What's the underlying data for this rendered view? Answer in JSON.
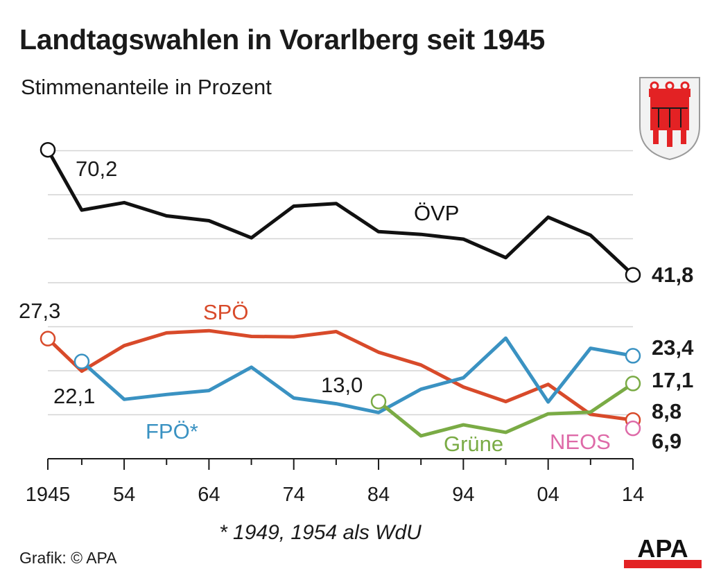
{
  "title": "Landtagswahlen in Vorarlberg seit 1945",
  "subtitle": "Stimmenanteile in Prozent",
  "footnote": "* 1949, 1954 als WdU",
  "credit": "Grafik: © APA",
  "logo_text": "APA",
  "chart_data": {
    "type": "line",
    "title": "Landtagswahlen in Vorarlberg seit 1945",
    "subtitle": "Stimmenanteile in Prozent",
    "x_tick_labels": [
      "1945",
      "54",
      "64",
      "74",
      "84",
      "94",
      "04",
      "14"
    ],
    "x_ticks": [
      1945,
      1954,
      1964,
      1974,
      1984,
      1994,
      2004,
      2014
    ],
    "xlim": [
      1945,
      2014
    ],
    "ylim": [
      0,
      70
    ],
    "grid": true,
    "series": [
      {
        "name": "ÖVP",
        "color": "#111111",
        "x": [
          1945,
          1949,
          1954,
          1959,
          1964,
          1969,
          1974,
          1979,
          1984,
          1989,
          1994,
          1999,
          2004,
          2009,
          2014
        ],
        "values": [
          70.2,
          56.5,
          58.2,
          55.2,
          54.1,
          50.2,
          57.4,
          58.0,
          51.6,
          51.0,
          49.9,
          45.7,
          54.9,
          50.8,
          41.8
        ]
      },
      {
        "name": "SPÖ",
        "color": "#d84a2a",
        "x": [
          1945,
          1949,
          1954,
          1959,
          1964,
          1969,
          1974,
          1979,
          1984,
          1989,
          1994,
          1999,
          2004,
          2009,
          2014
        ],
        "values": [
          27.3,
          19.9,
          25.7,
          28.6,
          29.1,
          27.8,
          27.7,
          28.9,
          24.2,
          21.3,
          16.3,
          13.0,
          16.9,
          10.1,
          8.8
        ]
      },
      {
        "name": "FPÖ*",
        "color": "#3a92c2",
        "x": [
          1949,
          1954,
          1959,
          1964,
          1969,
          1974,
          1979,
          1984,
          1989,
          1994,
          1999,
          2004,
          2009,
          2014
        ],
        "values": [
          22.1,
          13.5,
          14.6,
          15.5,
          20.8,
          13.8,
          12.5,
          10.5,
          15.8,
          18.4,
          27.4,
          12.9,
          25.1,
          23.4
        ]
      },
      {
        "name": "Grüne",
        "color": "#7aab45",
        "x": [
          1984,
          1989,
          1994,
          1999,
          2004,
          2009,
          2014
        ],
        "values": [
          13.0,
          5.2,
          7.7,
          6.0,
          10.2,
          10.6,
          17.1
        ]
      },
      {
        "name": "NEOS",
        "color": "#de6aa8",
        "x": [
          2014
        ],
        "values": [
          6.9
        ]
      }
    ],
    "annotations": [
      {
        "text": "70,2"
      },
      {
        "text": "41,8"
      },
      {
        "text": "27,3"
      },
      {
        "text": "22,1"
      },
      {
        "text": "13,0"
      },
      {
        "text": "23,4"
      },
      {
        "text": "17,1"
      },
      {
        "text": "8,8"
      },
      {
        "text": "6,9"
      }
    ]
  }
}
